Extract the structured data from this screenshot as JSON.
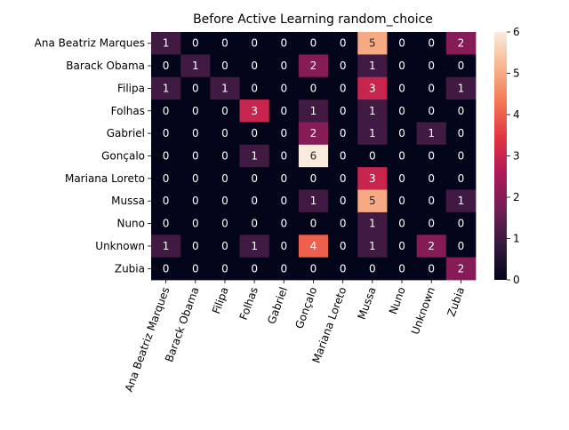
{
  "chart_data": {
    "type": "heatmap",
    "title": "Before Active Learning random_choice",
    "row_labels": [
      "Ana Beatriz Marques",
      "Barack Obama",
      "Filipa",
      "Folhas",
      "Gabriel",
      "Gonçalo",
      "Mariana Loreto",
      "Mussa",
      "Nuno",
      "Unknown",
      "Zubia"
    ],
    "col_labels": [
      "Ana Beatriz Marques",
      "Barack Obama",
      "Filipa",
      "Folhas",
      "Gabriel",
      "Gonçalo",
      "Mariana Loreto",
      "Mussa",
      "Nuno",
      "Unknown",
      "Zubia"
    ],
    "values": [
      [
        1,
        0,
        0,
        0,
        0,
        0,
        0,
        5,
        0,
        0,
        2
      ],
      [
        0,
        1,
        0,
        0,
        0,
        2,
        0,
        1,
        0,
        0,
        0
      ],
      [
        1,
        0,
        1,
        0,
        0,
        0,
        0,
        3,
        0,
        0,
        1
      ],
      [
        0,
        0,
        0,
        3,
        0,
        1,
        0,
        1,
        0,
        0,
        0
      ],
      [
        0,
        0,
        0,
        0,
        0,
        2,
        0,
        1,
        0,
        1,
        0
      ],
      [
        0,
        0,
        0,
        1,
        0,
        6,
        0,
        0,
        0,
        0,
        0
      ],
      [
        0,
        0,
        0,
        0,
        0,
        0,
        0,
        3,
        0,
        0,
        0
      ],
      [
        0,
        0,
        0,
        0,
        0,
        1,
        0,
        5,
        0,
        0,
        1
      ],
      [
        0,
        0,
        0,
        0,
        0,
        0,
        0,
        1,
        0,
        0,
        0
      ],
      [
        1,
        0,
        0,
        1,
        0,
        4,
        0,
        1,
        0,
        2,
        0
      ],
      [
        0,
        0,
        0,
        0,
        0,
        0,
        0,
        0,
        0,
        0,
        2
      ]
    ],
    "vmin": 0,
    "vmax": 6,
    "colorbar_ticks": [
      0,
      1,
      2,
      3,
      4,
      5,
      6
    ],
    "colormap": "rocket",
    "colormap_stops": [
      "#03051a",
      "#36193e",
      "#701f57",
      "#ae1759",
      "#e13342",
      "#f37651",
      "#f6b48e",
      "#faebdd"
    ]
  }
}
